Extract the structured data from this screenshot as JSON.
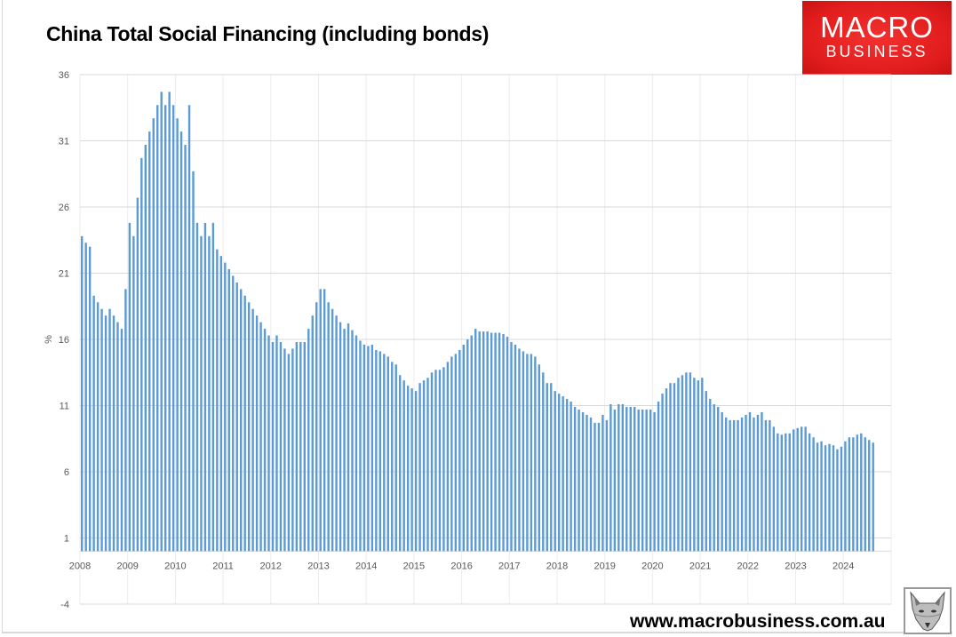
{
  "title": "China Total Social Financing (including bonds)",
  "logo": {
    "line1": "MACRO",
    "line2": "BUSINESS",
    "color": "#e01c1c"
  },
  "footer": "www.macrobusiness.com.au",
  "chart_data": {
    "type": "bar",
    "title": "China Total Social Financing (including bonds)",
    "xlabel": "",
    "ylabel": "%",
    "ylim": [
      -4,
      36
    ],
    "yticks": [
      "-4",
      "1",
      "6",
      "11",
      "16",
      "21",
      "26",
      "31",
      "36"
    ],
    "xticks": [
      "2008",
      "2009",
      "2010",
      "2011",
      "2012",
      "2013",
      "2014",
      "2015",
      "2016",
      "2017",
      "2018",
      "2019",
      "2020",
      "2021",
      "2022",
      "2023",
      "2024"
    ],
    "frequency": "monthly",
    "start": "2008-01",
    "end": "2024-08",
    "grid": true,
    "bar_color": "#5b9bd5",
    "values": [
      23.8,
      23.3,
      23.0,
      19.3,
      18.8,
      18.3,
      17.8,
      18.3,
      17.8,
      17.3,
      16.8,
      19.8,
      24.8,
      23.8,
      26.7,
      29.7,
      30.7,
      31.7,
      32.7,
      33.7,
      34.7,
      33.7,
      34.7,
      33.7,
      32.7,
      31.7,
      30.7,
      33.7,
      28.7,
      24.8,
      23.8,
      24.8,
      23.8,
      24.8,
      22.8,
      22.3,
      21.8,
      21.3,
      20.8,
      20.3,
      19.8,
      19.3,
      18.8,
      18.3,
      17.8,
      17.3,
      16.8,
      16.3,
      15.8,
      16.3,
      15.8,
      15.3,
      14.9,
      15.3,
      15.8,
      15.8,
      15.8,
      16.8,
      17.8,
      18.8,
      19.8,
      19.8,
      18.8,
      18.3,
      17.8,
      17.3,
      16.8,
      17.2,
      16.7,
      16.3,
      15.9,
      15.6,
      15.5,
      15.6,
      15.2,
      15.1,
      14.9,
      14.7,
      14.3,
      14.1,
      13.3,
      12.9,
      12.5,
      12.3,
      12.1,
      12.7,
      12.9,
      13.1,
      13.5,
      13.7,
      13.7,
      13.9,
      14.3,
      14.7,
      14.9,
      15.2,
      15.6,
      16.0,
      16.3,
      16.8,
      16.6,
      16.6,
      16.6,
      16.5,
      16.5,
      16.5,
      16.4,
      16.2,
      15.8,
      15.6,
      15.3,
      15.1,
      14.9,
      14.9,
      14.7,
      14.1,
      13.5,
      12.7,
      12.7,
      12.1,
      11.9,
      11.7,
      11.5,
      11.3,
      10.9,
      10.7,
      10.5,
      10.3,
      10.1,
      9.7,
      9.7,
      10.3,
      9.9,
      11.1,
      10.7,
      11.1,
      11.1,
      10.9,
      10.9,
      10.9,
      10.7,
      10.7,
      10.7,
      10.7,
      10.5,
      11.3,
      11.9,
      12.3,
      12.7,
      12.7,
      13.1,
      13.3,
      13.5,
      13.5,
      13.1,
      12.9,
      13.1,
      12.1,
      11.5,
      11.1,
      10.9,
      10.5,
      10.1,
      9.9,
      9.9,
      9.9,
      10.1,
      10.3,
      10.5,
      10.1,
      10.3,
      10.5,
      9.9,
      9.9,
      9.4,
      8.9,
      8.8,
      8.9,
      8.9,
      9.2,
      9.3,
      9.4,
      9.4,
      8.9,
      8.6,
      8.2,
      8.3,
      8.0,
      8.1,
      8.0,
      7.7,
      7.9,
      8.3,
      8.6,
      8.6,
      8.8,
      8.9,
      8.6,
      8.4,
      8.2
    ]
  }
}
